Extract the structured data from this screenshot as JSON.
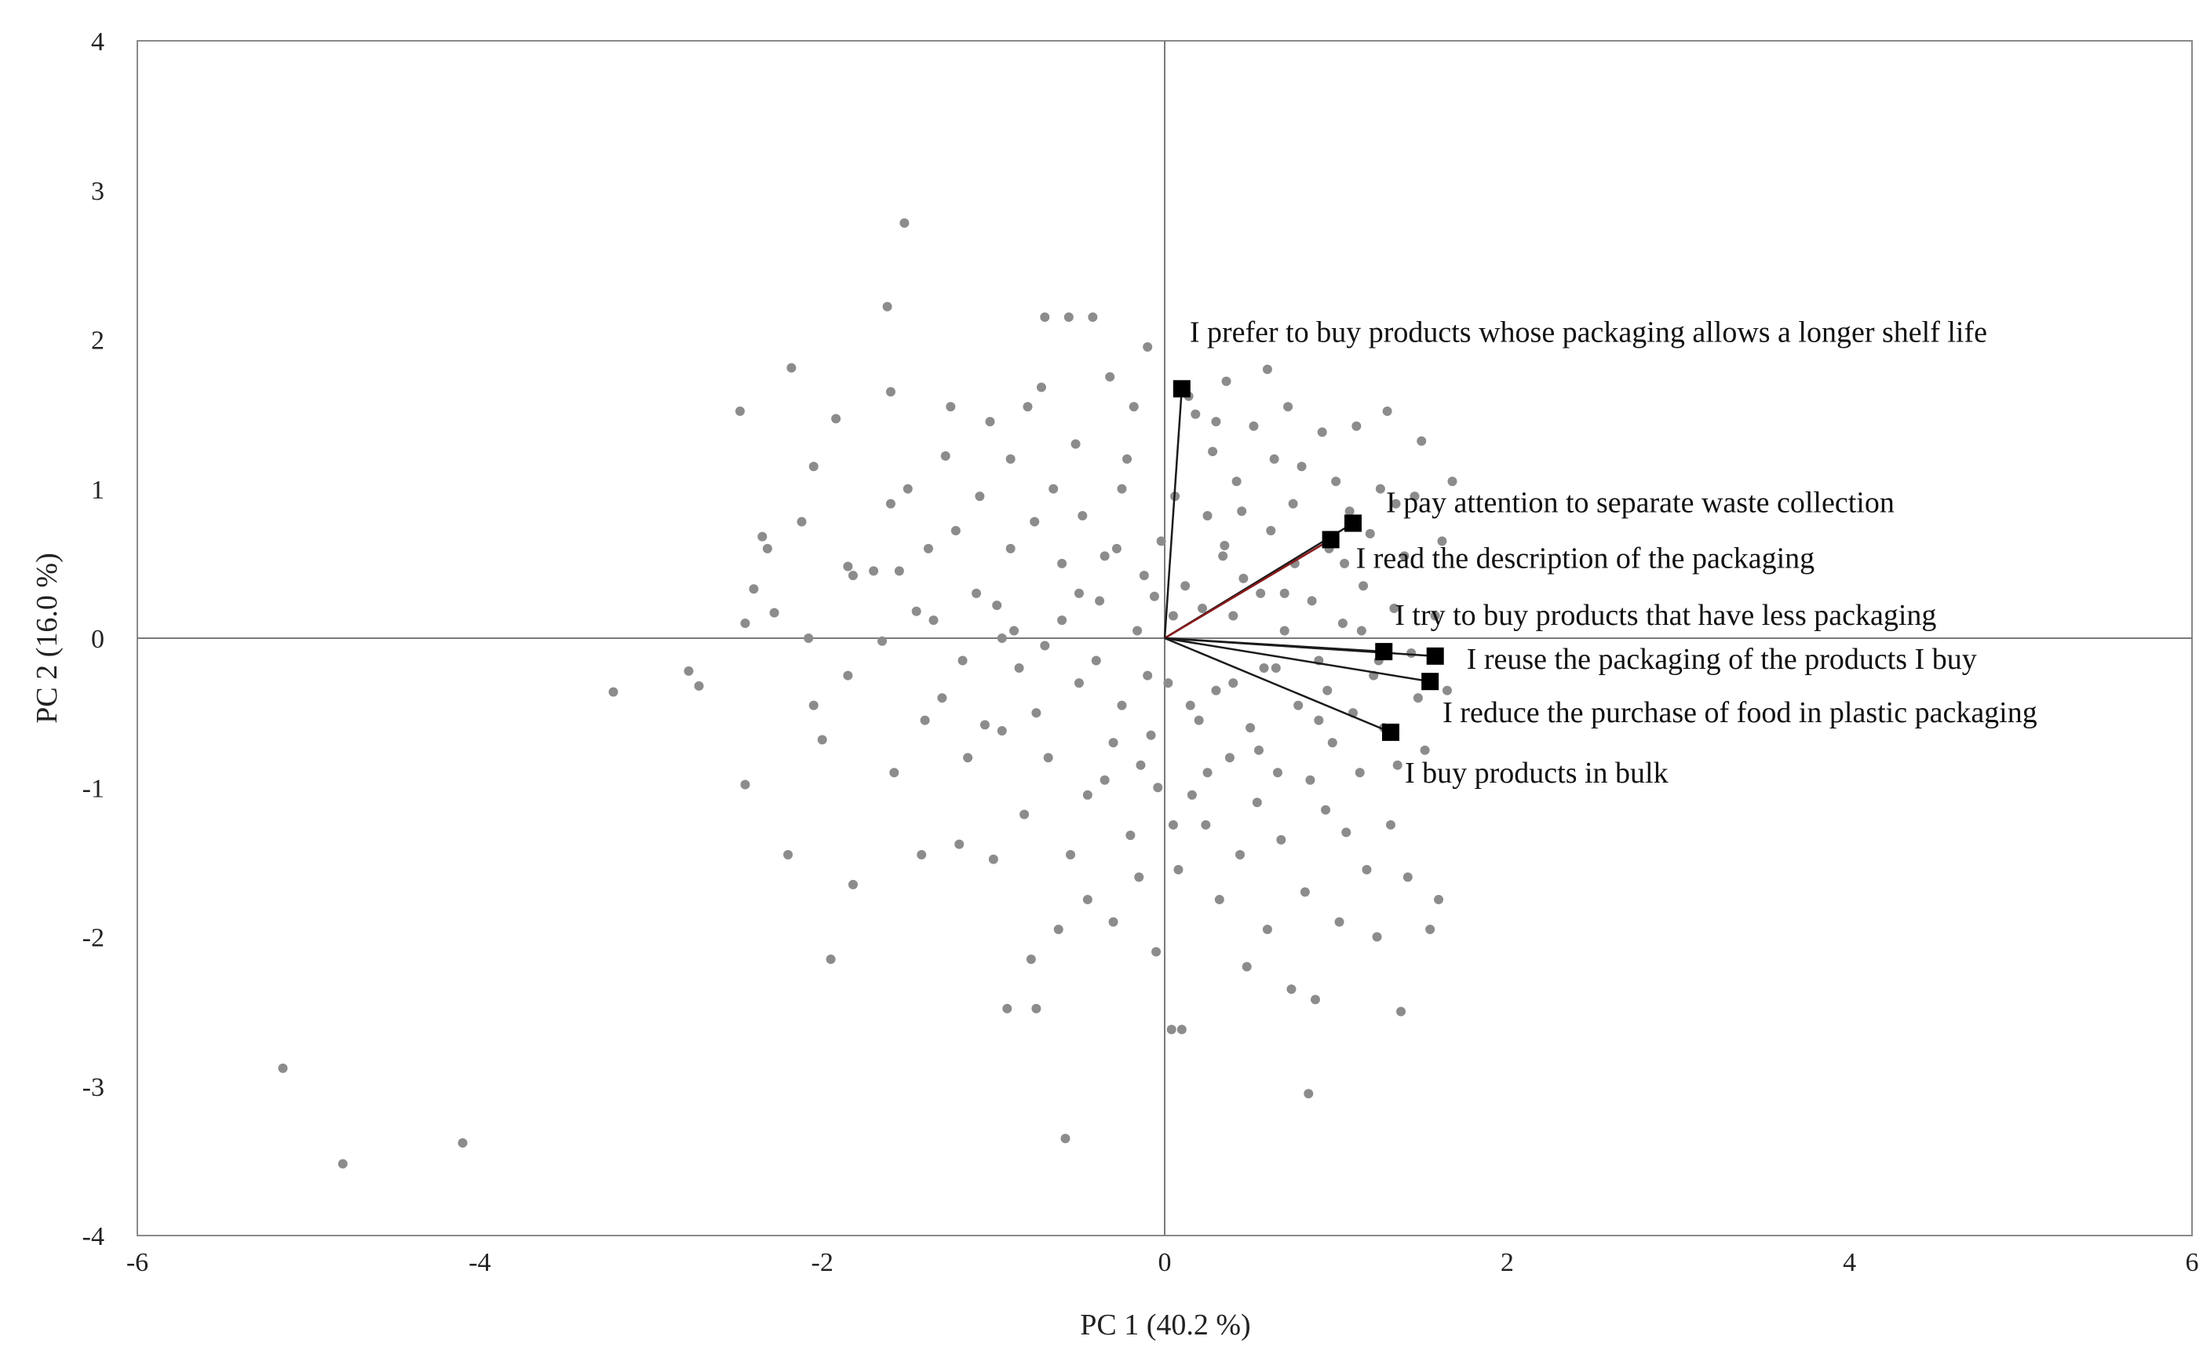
{
  "chart_data": {
    "type": "scatter",
    "title": "",
    "xlabel": "PC 1 (40.2 %)",
    "ylabel": "PC 2 (16.0 %)",
    "xlim": [
      -6,
      6
    ],
    "ylim": [
      -4,
      4
    ],
    "xticks": [
      -6,
      -4,
      -2,
      0,
      2,
      4,
      6
    ],
    "yticks": [
      -4,
      -3,
      -2,
      -1,
      0,
      1,
      2,
      3,
      4
    ],
    "grid": false,
    "legend": "none",
    "colors": {
      "points": "#8c8c8c",
      "vector": "#1a1a1a",
      "vector_highlight": "#8b1a1a",
      "marker": "#000000",
      "axis": "#7a7a7a"
    },
    "observations": [
      [
        -5.15,
        -2.88
      ],
      [
        -4.8,
        -3.52
      ],
      [
        -4.1,
        -3.38
      ],
      [
        -3.22,
        -0.36
      ],
      [
        -2.78,
        -0.22
      ],
      [
        -2.72,
        -0.32
      ],
      [
        -2.48,
        1.52
      ],
      [
        -2.45,
        0.1
      ],
      [
        -2.45,
        -0.98
      ],
      [
        -2.4,
        0.33
      ],
      [
        -2.35,
        0.68
      ],
      [
        -2.32,
        0.6
      ],
      [
        -2.28,
        0.17
      ],
      [
        -2.2,
        -1.45
      ],
      [
        -2.18,
        1.81
      ],
      [
        -2.12,
        0.78
      ],
      [
        -2.08,
        0.0
      ],
      [
        -2.05,
        1.15
      ],
      [
        -2.05,
        -0.45
      ],
      [
        -2.0,
        -0.68
      ],
      [
        -1.95,
        -2.15
      ],
      [
        -1.92,
        1.47
      ],
      [
        -1.85,
        0.48
      ],
      [
        -1.82,
        0.42
      ],
      [
        -1.82,
        -1.65
      ],
      [
        -1.7,
        0.45
      ],
      [
        -1.65,
        -0.02
      ],
      [
        -1.62,
        2.22
      ],
      [
        -1.6,
        1.65
      ],
      [
        -1.58,
        -0.9
      ],
      [
        -1.55,
        0.45
      ],
      [
        -1.52,
        2.78
      ],
      [
        -1.5,
        1.0
      ],
      [
        -1.45,
        0.18
      ],
      [
        -1.42,
        -1.45
      ],
      [
        -1.38,
        0.6
      ],
      [
        -1.35,
        0.12
      ],
      [
        -1.3,
        -0.4
      ],
      [
        -1.28,
        1.22
      ],
      [
        -1.25,
        1.55
      ],
      [
        -1.22,
        0.72
      ],
      [
        -1.2,
        -1.38
      ],
      [
        -1.18,
        -0.15
      ],
      [
        -1.1,
        0.3
      ],
      [
        -1.08,
        0.95
      ],
      [
        -1.05,
        -0.58
      ],
      [
        -1.02,
        1.45
      ],
      [
        -1.0,
        -1.48
      ],
      [
        -0.98,
        0.22
      ],
      [
        -0.95,
        -0.62
      ],
      [
        -0.92,
        -2.48
      ],
      [
        -0.9,
        1.2
      ],
      [
        -0.88,
        0.05
      ],
      [
        -0.85,
        -0.2
      ],
      [
        -0.82,
        -1.18
      ],
      [
        -0.8,
        1.55
      ],
      [
        -0.78,
        -2.15
      ],
      [
        -0.76,
        0.78
      ],
      [
        -0.75,
        -2.48
      ],
      [
        -0.72,
        1.68
      ],
      [
        -0.7,
        2.15
      ],
      [
        -0.68,
        -0.8
      ],
      [
        -0.65,
        1.0
      ],
      [
        -0.62,
        -1.95
      ],
      [
        -0.6,
        0.5
      ],
      [
        -0.58,
        -3.35
      ],
      [
        -0.56,
        2.15
      ],
      [
        -0.55,
        -1.45
      ],
      [
        -0.52,
        1.3
      ],
      [
        -0.5,
        -0.3
      ],
      [
        -0.48,
        0.82
      ],
      [
        -0.45,
        -1.05
      ],
      [
        -0.42,
        2.15
      ],
      [
        -0.4,
        -0.15
      ],
      [
        -0.38,
        0.25
      ],
      [
        -0.35,
        -0.95
      ],
      [
        -0.32,
        1.75
      ],
      [
        -0.3,
        -1.9
      ],
      [
        -0.28,
        0.6
      ],
      [
        -0.25,
        -0.45
      ],
      [
        -0.22,
        1.2
      ],
      [
        -0.2,
        -1.32
      ],
      [
        -0.18,
        1.55
      ],
      [
        -0.16,
        0.05
      ],
      [
        -0.14,
        -0.85
      ],
      [
        -0.12,
        0.42
      ],
      [
        -0.1,
        1.95
      ],
      [
        -0.08,
        -0.65
      ],
      [
        -0.06,
        0.28
      ],
      [
        -0.05,
        -2.1
      ],
      [
        -0.04,
        -1.0
      ],
      [
        -0.02,
        0.65
      ],
      [
        0.02,
        -0.3
      ],
      [
        0.04,
        -2.62
      ],
      [
        0.06,
        0.95
      ],
      [
        0.08,
        -1.55
      ],
      [
        0.1,
        -2.62
      ],
      [
        0.12,
        0.35
      ],
      [
        0.14,
        1.62
      ],
      [
        0.16,
        -1.05
      ],
      [
        0.18,
        1.5
      ],
      [
        0.2,
        -0.55
      ],
      [
        0.22,
        0.2
      ],
      [
        0.24,
        -1.25
      ],
      [
        0.25,
        0.82
      ],
      [
        0.28,
        1.25
      ],
      [
        0.3,
        -0.35
      ],
      [
        0.32,
        -1.75
      ],
      [
        0.34,
        0.55
      ],
      [
        0.36,
        1.72
      ],
      [
        0.38,
        -0.8
      ],
      [
        0.4,
        0.15
      ],
      [
        0.42,
        1.05
      ],
      [
        0.44,
        -1.45
      ],
      [
        0.46,
        0.4
      ],
      [
        0.48,
        -2.2
      ],
      [
        0.5,
        -0.6
      ],
      [
        0.52,
        1.42
      ],
      [
        0.54,
        -1.1
      ],
      [
        0.56,
        0.3
      ],
      [
        0.58,
        -0.2
      ],
      [
        0.6,
        -1.95
      ],
      [
        0.62,
        0.72
      ],
      [
        0.64,
        1.2
      ],
      [
        0.66,
        -0.9
      ],
      [
        0.68,
        -1.35
      ],
      [
        0.7,
        0.05
      ],
      [
        0.72,
        1.55
      ],
      [
        0.74,
        -2.35
      ],
      [
        0.76,
        0.5
      ],
      [
        0.78,
        -0.45
      ],
      [
        0.8,
        1.15
      ],
      [
        0.82,
        -1.7
      ],
      [
        0.84,
        -3.05
      ],
      [
        0.86,
        0.25
      ],
      [
        0.88,
        -2.42
      ],
      [
        0.9,
        -0.15
      ],
      [
        0.92,
        1.38
      ],
      [
        0.94,
        -1.15
      ],
      [
        0.96,
        0.6
      ],
      [
        0.98,
        -0.7
      ],
      [
        1.0,
        1.05
      ],
      [
        1.02,
        -1.9
      ],
      [
        1.04,
        0.1
      ],
      [
        1.06,
        -1.3
      ],
      [
        1.08,
        0.85
      ],
      [
        1.1,
        -0.5
      ],
      [
        1.12,
        1.42
      ],
      [
        1.14,
        -0.9
      ],
      [
        1.16,
        0.35
      ],
      [
        1.18,
        -1.55
      ],
      [
        1.2,
        0.7
      ],
      [
        1.22,
        -0.25
      ],
      [
        1.24,
        -2.0
      ],
      [
        1.26,
        1.0
      ],
      [
        1.28,
        -0.6
      ],
      [
        1.3,
        1.52
      ],
      [
        1.32,
        -1.25
      ],
      [
        1.34,
        0.2
      ],
      [
        1.36,
        -0.85
      ],
      [
        1.38,
        -2.5
      ],
      [
        1.4,
        0.55
      ],
      [
        1.42,
        -1.6
      ],
      [
        1.44,
        -0.1
      ],
      [
        1.46,
        0.95
      ],
      [
        1.48,
        -0.4
      ],
      [
        1.5,
        1.32
      ],
      [
        1.52,
        -0.75
      ],
      [
        1.55,
        -1.95
      ],
      [
        1.58,
        0.15
      ],
      [
        1.6,
        -1.75
      ],
      [
        1.62,
        0.65
      ],
      [
        1.65,
        -0.35
      ],
      [
        1.68,
        1.05
      ],
      [
        -0.7,
        -0.05
      ],
      [
        -0.9,
        0.6
      ],
      [
        -1.15,
        -0.8
      ],
      [
        -0.45,
        -1.75
      ],
      [
        -0.25,
        1.0
      ],
      [
        0.15,
        -0.45
      ],
      [
        0.35,
        0.62
      ],
      [
        0.55,
        -0.75
      ],
      [
        0.75,
        0.9
      ],
      [
        0.95,
        -0.35
      ],
      [
        1.15,
        0.05
      ],
      [
        -0.6,
        0.12
      ],
      [
        -0.3,
        -0.7
      ],
      [
        -0.1,
        -0.25
      ],
      [
        0.05,
        0.15
      ],
      [
        0.25,
        -0.9
      ],
      [
        0.45,
        0.85
      ],
      [
        0.65,
        -0.2
      ],
      [
        0.85,
        -0.95
      ],
      [
        1.05,
        0.5
      ],
      [
        1.25,
        -0.15
      ],
      [
        -1.4,
        -0.55
      ],
      [
        -1.6,
        0.9
      ],
      [
        -1.85,
        -0.25
      ],
      [
        -0.5,
        0.3
      ],
      [
        0.6,
        1.8
      ],
      [
        0.3,
        1.45
      ],
      [
        -0.15,
        -1.6
      ],
      [
        -0.95,
        0.0
      ],
      [
        0.05,
        -1.25
      ],
      [
        -0.35,
        0.55
      ],
      [
        -0.75,
        -0.5
      ],
      [
        0.4,
        -0.3
      ],
      [
        0.7,
        0.3
      ],
      [
        0.9,
        -0.55
      ],
      [
        1.35,
        0.9
      ]
    ],
    "variables": [
      {
        "label": "I prefer to buy products whose packaging allows a longer shelf life",
        "x": 0.1,
        "y": 1.67,
        "highlight": false
      },
      {
        "label": "I pay attention to separate waste collection",
        "x": 1.1,
        "y": 0.77,
        "highlight": false
      },
      {
        "label": "I read the description of the packaging",
        "x": 0.97,
        "y": 0.66,
        "highlight": true
      },
      {
        "label": "I try to buy products that have less packaging",
        "x": 1.28,
        "y": -0.09,
        "highlight": false
      },
      {
        "label": "I reuse the packaging of the products I buy",
        "x": 1.58,
        "y": -0.12,
        "highlight": false
      },
      {
        "label": "I reduce the purchase of food in plastic packaging",
        "x": 1.55,
        "y": -0.29,
        "highlight": false
      },
      {
        "label": "I buy products in bulk",
        "x": 1.32,
        "y": -0.63,
        "highlight": false
      }
    ]
  }
}
